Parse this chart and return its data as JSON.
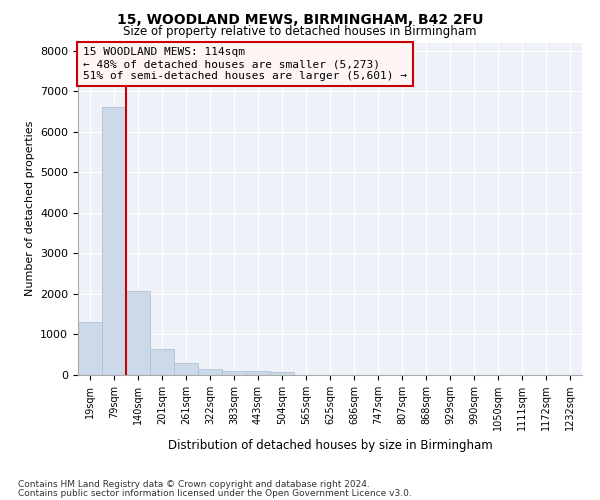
{
  "title": "15, WOODLAND MEWS, BIRMINGHAM, B42 2FU",
  "subtitle": "Size of property relative to detached houses in Birmingham",
  "xlabel": "Distribution of detached houses by size in Birmingham",
  "ylabel": "Number of detached properties",
  "categories": [
    "19sqm",
    "79sqm",
    "140sqm",
    "201sqm",
    "261sqm",
    "322sqm",
    "383sqm",
    "443sqm",
    "504sqm",
    "565sqm",
    "625sqm",
    "686sqm",
    "747sqm",
    "807sqm",
    "868sqm",
    "929sqm",
    "990sqm",
    "1050sqm",
    "1111sqm",
    "1172sqm",
    "1232sqm"
  ],
  "values": [
    1300,
    6600,
    2080,
    650,
    290,
    150,
    110,
    90,
    70,
    0,
    0,
    0,
    0,
    0,
    0,
    0,
    0,
    0,
    0,
    0,
    0
  ],
  "bar_color": "#ccd9e8",
  "bar_edge_color": "#aabcce",
  "property_line_x": 1.5,
  "property_line_color": "#cc0000",
  "annotation_text": "15 WOODLAND MEWS: 114sqm\n← 48% of detached houses are smaller (5,273)\n51% of semi-detached houses are larger (5,601) →",
  "annotation_box_facecolor": "#fff5f5",
  "annotation_box_edge": "#cc0000",
  "ylim": [
    0,
    8200
  ],
  "yticks": [
    0,
    1000,
    2000,
    3000,
    4000,
    5000,
    6000,
    7000,
    8000
  ],
  "footer1": "Contains HM Land Registry data © Crown copyright and database right 2024.",
  "footer2": "Contains public sector information licensed under the Open Government Licence v3.0.",
  "bg_color": "#ffffff",
  "plot_bg_color": "#eef2f8",
  "grid_color": "#ffffff"
}
